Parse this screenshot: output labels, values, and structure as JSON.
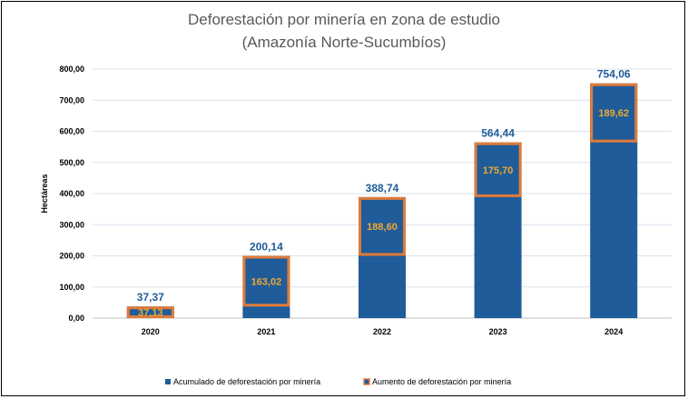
{
  "chart_data": {
    "type": "bar",
    "title": "Deforestación por minería en zona de estudio",
    "subtitle": "(Amazonía Norte-Sucumbíos)",
    "ylabel": "Hectáreas",
    "xlabel": "",
    "ylim": [
      0,
      800
    ],
    "yticks": [
      "0,00",
      "100,00",
      "200,00",
      "300,00",
      "400,00",
      "500,00",
      "600,00",
      "700,00",
      "800,00"
    ],
    "categories": [
      "2020",
      "2021",
      "2022",
      "2023",
      "2024"
    ],
    "series": [
      {
        "name": "Acumulado de deforestación por minería",
        "values": [
          37.37,
          200.14,
          388.74,
          564.44,
          754.06
        ],
        "labels": [
          "37,37",
          "200,14",
          "388,74",
          "564,44",
          "754,06"
        ],
        "color": "#1F5C99"
      },
      {
        "name": "Aumento de deforestación por minería",
        "values": [
          37.13,
          163.02,
          188.6,
          175.7,
          189.62
        ],
        "labels": [
          "37,13",
          "163,02",
          "188,60",
          "175,70",
          "189,62"
        ],
        "color": "#E07B39"
      }
    ],
    "grid": true,
    "legend": "bottom"
  }
}
